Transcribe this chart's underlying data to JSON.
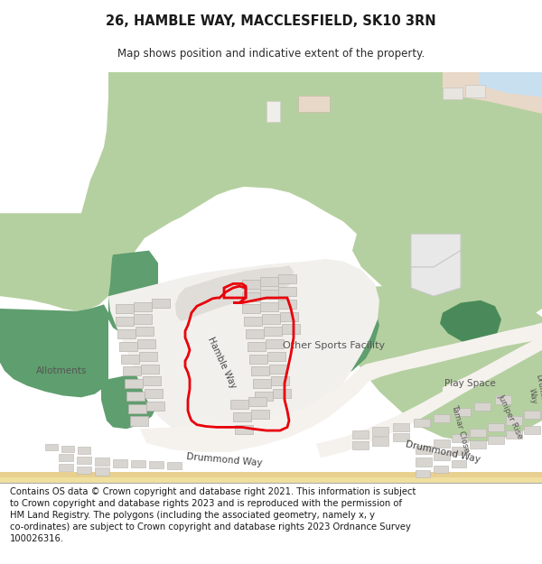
{
  "title": "26, HAMBLE WAY, MACCLESFIELD, SK10 3RN",
  "subtitle": "Map shows position and indicative extent of the property.",
  "footer": "Contains OS data © Crown copyright and database right 2021. This information is subject\nto Crown copyright and database rights 2023 and is reproduced with the permission of\nHM Land Registry. The polygons (including the associated geometry, namely x, y\nco-ordinates) are subject to Crown copyright and database rights 2023 Ordnance Survey\n100026316.",
  "bg_color": "#ffffff",
  "map_bg": "#edeae4",
  "green_light": "#b5d0a0",
  "green_mid": "#8ab88a",
  "green_dark": "#5f9e6e",
  "green_dark2": "#4a8a5a",
  "road_color": "#f2f0ed",
  "building_color": "#d8d5d0",
  "building_outline": "#b8b5b0",
  "highlight_color": "#e8000a",
  "sand_color": "#f0e0a0",
  "blue_light": "#c8dff0",
  "title_fontsize": 10.5,
  "subtitle_fontsize": 8.5,
  "footer_fontsize": 7.2
}
